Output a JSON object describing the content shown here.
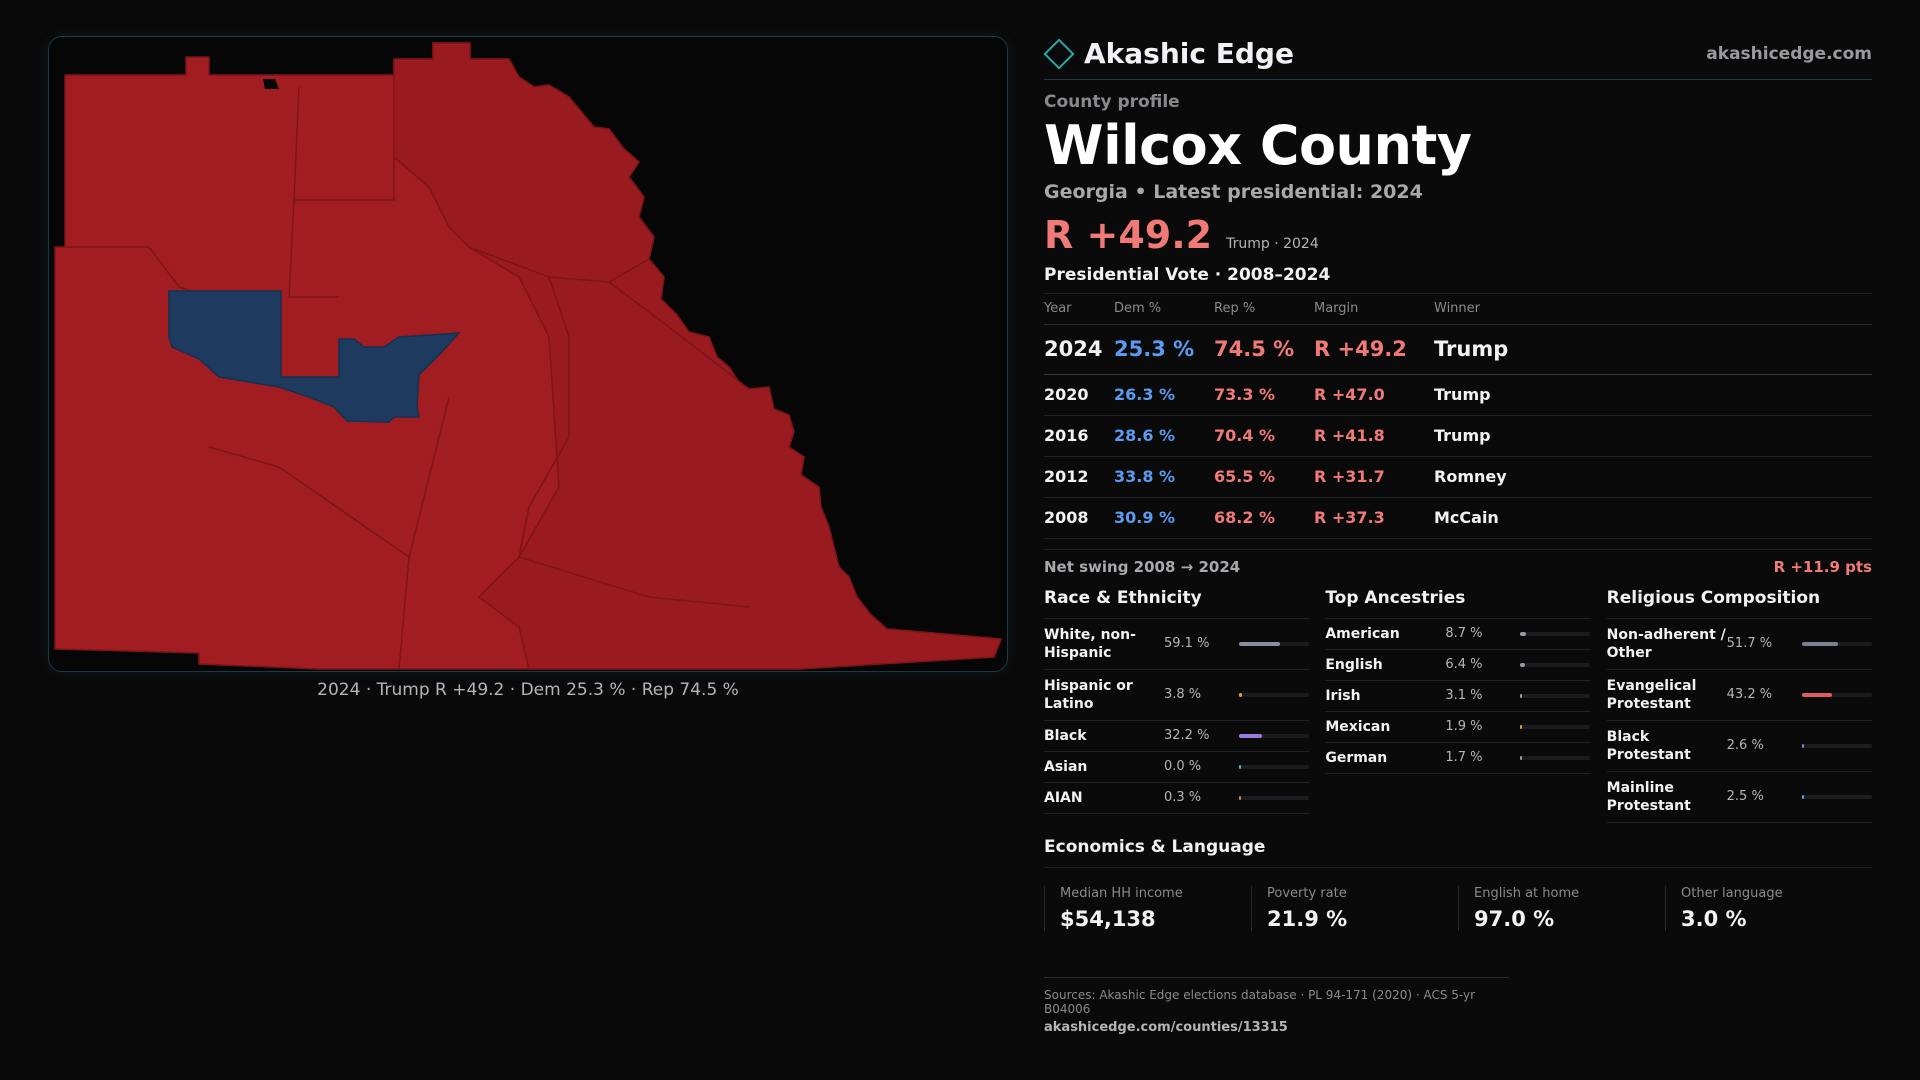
{
  "brand": {
    "name": "Akashic Edge",
    "url": "akashicedge.com"
  },
  "header": {
    "kicker": "County profile",
    "title": "Wilcox County",
    "subtitle": "Georgia • Latest presidential: 2024",
    "margin": "R +49.2",
    "margin_note": "Trump · 2024"
  },
  "map": {
    "caption": "2024 · Trump  R +49.2 · Dem 25.3 % · Rep 74.5 %",
    "colors": {
      "rep": "#a11d22",
      "rep_dark": "#9a1b1f",
      "dem": "#1e3a5f",
      "border": "#7d1418"
    }
  },
  "votes": {
    "title": "Presidential Vote · 2008–2024",
    "headers": [
      "Year",
      "Dem %",
      "Rep %",
      "Margin",
      "Winner"
    ],
    "rows": [
      {
        "year": "2024",
        "dem": "25.3 %",
        "rep": "74.5 %",
        "margin": "R +49.2",
        "winner": "Trump"
      },
      {
        "year": "2020",
        "dem": "26.3 %",
        "rep": "73.3 %",
        "margin": "R +47.0",
        "winner": "Trump"
      },
      {
        "year": "2016",
        "dem": "28.6 %",
        "rep": "70.4 %",
        "margin": "R +41.8",
        "winner": "Trump"
      },
      {
        "year": "2012",
        "dem": "33.8 %",
        "rep": "65.5 %",
        "margin": "R +31.7",
        "winner": "Romney"
      },
      {
        "year": "2008",
        "dem": "30.9 %",
        "rep": "68.2 %",
        "margin": "R +37.3",
        "winner": "McCain"
      }
    ]
  },
  "swing": {
    "label": "Net swing 2008 → 2024",
    "value": "R +11.9 pts"
  },
  "race": {
    "title": "Race & Ethnicity",
    "items": [
      {
        "name": "White, non-Hispanic",
        "value": "59.1 %",
        "pct": 59.1,
        "color": "#8a8f9e"
      },
      {
        "name": "Hispanic or Latino",
        "value": "3.8 %",
        "pct": 3.8,
        "color": "#e0a030"
      },
      {
        "name": "Black",
        "value": "32.2 %",
        "pct": 32.2,
        "color": "#9a7ae0"
      },
      {
        "name": "Asian",
        "value": "0.0 %",
        "pct": 0.0,
        "color": "#4fb0c0"
      },
      {
        "name": "AIAN",
        "value": "0.3 %",
        "pct": 0.3,
        "color": "#e08050"
      }
    ]
  },
  "ancestry": {
    "title": "Top Ancestries",
    "items": [
      {
        "name": "American",
        "value": "8.7 %",
        "pct": 8.7,
        "color": "#9a9aa0"
      },
      {
        "name": "English",
        "value": "6.4 %",
        "pct": 6.4,
        "color": "#9a9aa0"
      },
      {
        "name": "Irish",
        "value": "3.1 %",
        "pct": 3.1,
        "color": "#9a9aa0"
      },
      {
        "name": "Mexican",
        "value": "1.9 %",
        "pct": 1.9,
        "color": "#e0a030"
      },
      {
        "name": "German",
        "value": "1.7 %",
        "pct": 1.7,
        "color": "#9a9aa0"
      }
    ]
  },
  "religion": {
    "title": "Religious Composition",
    "items": [
      {
        "name": "Non-adherent / Other",
        "value": "51.7 %",
        "pct": 51.7,
        "color": "#7a808e"
      },
      {
        "name": "Evangelical Protestant",
        "value": "43.2 %",
        "pct": 43.2,
        "color": "#e05a5a"
      },
      {
        "name": "Black Protestant",
        "value": "2.6 %",
        "pct": 2.6,
        "color": "#9a7ae0"
      },
      {
        "name": "Mainline Protestant",
        "value": "2.5 %",
        "pct": 2.5,
        "color": "#5b9bf0"
      }
    ]
  },
  "economics": {
    "title": "Economics & Language",
    "items": [
      {
        "label": "Median HH income",
        "value": "$54,138"
      },
      {
        "label": "Poverty rate",
        "value": "21.9 %"
      },
      {
        "label": "English at home",
        "value": "97.0 %"
      },
      {
        "label": "Other language",
        "value": "3.0 %"
      }
    ]
  },
  "sources": {
    "line": "Sources: Akashic Edge elections database · PL 94-171 (2020) · ACS 5-yr B04006",
    "url": "akashicedge.com/counties/13315"
  }
}
